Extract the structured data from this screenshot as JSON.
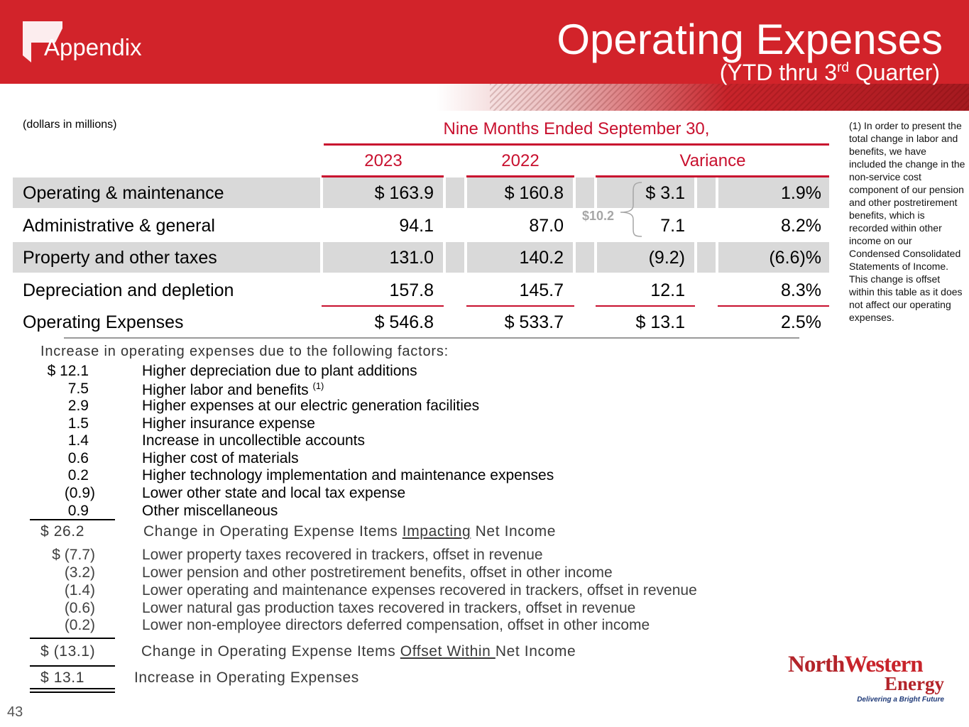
{
  "header": {
    "section": "Appendix",
    "title": "Operating Expenses",
    "subtitle_pre": "(YTD thru 3",
    "subtitle_sup": "rd",
    "subtitle_post": " Quarter)",
    "colors": {
      "brand_red": "#d2232a",
      "table_red": "#c8102e"
    }
  },
  "table": {
    "units": "(dollars in millions)",
    "period": "Nine Months Ended September 30,",
    "columns": [
      "2023",
      "2022",
      "Variance"
    ],
    "rows": [
      {
        "label": "Operating & maintenance",
        "y2023": "$ 163.9",
        "y2022": "$ 160.8",
        "var_amt": "$ 3.1",
        "var_pct": "1.9%"
      },
      {
        "label": "Administrative & general",
        "y2023": "94.1",
        "y2022": "87.0",
        "var_amt": "7.1",
        "var_pct": "8.2%"
      },
      {
        "label": "Property and other taxes",
        "y2023": "131.0",
        "y2022": "140.2",
        "var_amt": "(9.2)",
        "var_pct": "(6.6)%"
      },
      {
        "label": "Depreciation and depletion",
        "y2023": "157.8",
        "y2022": "145.7",
        "var_amt": "12.1",
        "var_pct": "8.3%"
      }
    ],
    "total": {
      "label": "Operating Expenses",
      "y2023": "$ 546.8",
      "y2022": "$ 533.7",
      "var_amt": "$ 13.1",
      "var_pct": "2.5%"
    },
    "brace_value": "$10.2"
  },
  "footnote": "(1) In order to present the total change in labor and benefits, we have included the change in the non-service cost component of our pension and other postretirement benefits, which is recorded within other income on our Condensed Consolidated Statements of Income. This change is offset within this table as it does not affect our operating expenses.",
  "factors": {
    "heading": "Increase in operating expenses due to the following factors:",
    "impacting": [
      {
        "amount": "$  12.1",
        "desc": "Higher depreciation due to plant additions"
      },
      {
        "amount": "7.5",
        "desc": "Higher labor and benefits",
        "sup": "(1)"
      },
      {
        "amount": "2.9",
        "desc": "Higher expenses at our electric generation facilities"
      },
      {
        "amount": "1.5",
        "desc": "Higher insurance expense"
      },
      {
        "amount": "1.4",
        "desc": "Increase in uncollectible accounts"
      },
      {
        "amount": "0.6",
        "desc": "Higher cost of materials"
      },
      {
        "amount": "0.2",
        "desc": "Higher technology implementation and maintenance expenses"
      },
      {
        "amount": "(0.9)",
        "desc": "Lower other state and local tax expense"
      },
      {
        "amount": "0.9",
        "desc": "Other miscellaneous"
      }
    ],
    "impacting_total": {
      "amount": "$  26.2",
      "pre": "Change in Operating Expense Items ",
      "u": "Impacting",
      "post": " Net Income"
    },
    "offset": [
      {
        "amount": "$   (7.7)",
        "desc": "Lower property taxes recovered in trackers, offset in revenue"
      },
      {
        "amount": "(3.2)",
        "desc": "Lower pension and other postretirement benefits, offset in other income"
      },
      {
        "amount": "(1.4)",
        "desc": "Lower operating and maintenance expenses recovered in trackers, offset in revenue"
      },
      {
        "amount": "(0.6)",
        "desc": "Lower natural gas production taxes recovered in trackers, offset in revenue"
      },
      {
        "amount": "(0.2)",
        "desc": "Lower non-employee directors deferred compensation, offset in other income"
      }
    ],
    "offset_total": {
      "amount": "$ (13.1)",
      "pre": "Change in Operating Expense Items ",
      "u": "Offset Within ",
      "post": "Net Income"
    },
    "grand_total": {
      "amount": "$  13.1",
      "label": "Increase in Operating Expenses"
    }
  },
  "logo": {
    "name_a": "North",
    "name_b": "Western",
    "name_c": "Energy",
    "tagline": "Delivering a Bright Future"
  },
  "page_number": "43"
}
